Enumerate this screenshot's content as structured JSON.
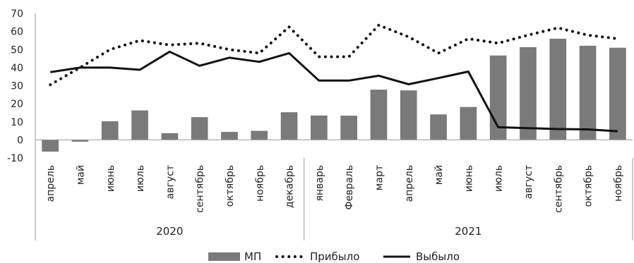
{
  "chart_data": {
    "type": "bar",
    "categories": [
      "апрель",
      "май",
      "июнь",
      "июль",
      "август",
      "сентябрь",
      "октябрь",
      "ноябрь",
      "декабрь",
      "январь",
      "Февраль",
      "март",
      "апрель",
      "май",
      "июнь",
      "июль",
      "август",
      "сентябрь",
      "октябрь",
      "ноябрь"
    ],
    "groups": [
      {
        "label": "2020",
        "start": 0,
        "end": 8
      },
      {
        "label": "2021",
        "start": 9,
        "end": 19
      }
    ],
    "series": [
      {
        "name": "МП",
        "type": "bar",
        "color": "#7a7a7a",
        "values": [
          -6.5,
          -1,
          10.3,
          16.3,
          3.7,
          12.6,
          4.4,
          5,
          15.3,
          13.5,
          13.4,
          27.8,
          27.4,
          14.1,
          18.2,
          46.7,
          51.3,
          56,
          52.1,
          51
        ]
      },
      {
        "name": "Прибыло",
        "type": "line",
        "style": "dotted",
        "color": "#111111",
        "values": [
          30.5,
          40,
          50,
          55,
          52.5,
          53.5,
          50,
          48,
          62.5,
          46,
          46,
          63.5,
          57,
          48,
          56,
          53.5,
          58,
          62,
          58,
          56
        ]
      },
      {
        "name": "Выбыло",
        "type": "line",
        "style": "solid",
        "color": "#111111",
        "values": [
          37.5,
          40,
          40,
          38.8,
          48.8,
          41,
          45.5,
          43.2,
          48,
          32.8,
          32.8,
          35.5,
          30.8,
          34.2,
          37.8,
          7,
          6.5,
          6,
          5.8,
          4.8
        ]
      }
    ],
    "ylim": [
      -10,
      70
    ],
    "yticks": [
      -10,
      0,
      10,
      20,
      30,
      40,
      50,
      60,
      70
    ],
    "grid": false,
    "legend_position": "bottom",
    "title": "",
    "xlabel": "",
    "ylabel": ""
  }
}
